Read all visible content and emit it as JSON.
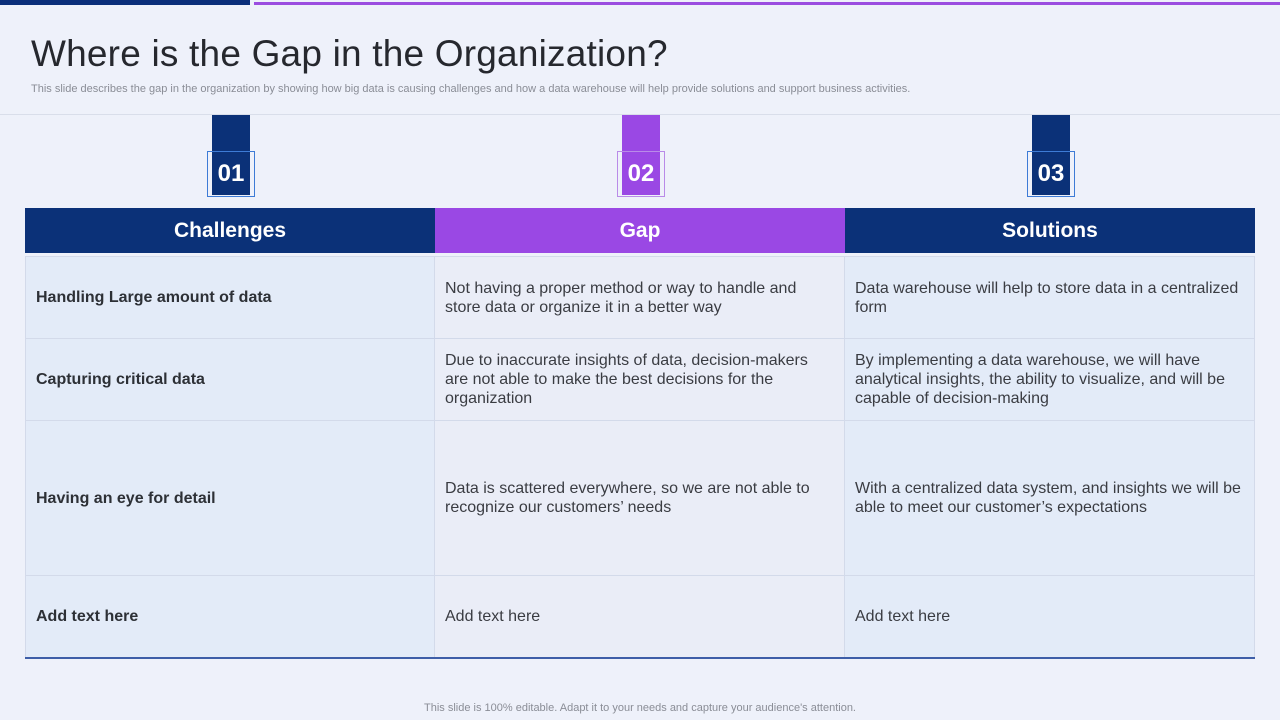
{
  "slide": {
    "title": "Where is the Gap in the Organization?",
    "subtitle": "This slide describes the gap in the organization by showing how big data is causing challenges and how a data warehouse will help provide solutions and support business activities.",
    "footer": "This slide is 100% editable. Adapt it to your needs and capture your audience's attention."
  },
  "colors": {
    "navy": "#0b3178",
    "purple": "#9a48e4",
    "background": "#eef1fa"
  },
  "tabs": [
    {
      "number": "01",
      "color": "navy"
    },
    {
      "number": "02",
      "color": "purple"
    },
    {
      "number": "03",
      "color": "navy"
    }
  ],
  "table": {
    "headers": [
      "Challenges",
      "Gap",
      "Solutions"
    ],
    "rows": [
      {
        "challenge": "Handling Large amount of data",
        "gap": "Not having a proper method or way to handle and store data or organize it in a better way",
        "solution": "Data warehouse will help to store data in a centralized form"
      },
      {
        "challenge": "Capturing critical  data",
        "gap": "Due to inaccurate insights of data, decision-makers are not able to make the best decisions for the organization",
        "solution": "By implementing a data warehouse, we will have analytical insights, the ability to visualize,  and will be capable of decision-making"
      },
      {
        "challenge": "Having an eye for detail",
        "gap": "Data is scattered everywhere,  so we are not able to recognize our customers’ needs",
        "solution": "With a centralized data system, and insights we will be able to meet our customer’s expectations"
      },
      {
        "challenge": "Add text here",
        "gap": "Add text here",
        "solution": "Add text here"
      }
    ]
  }
}
